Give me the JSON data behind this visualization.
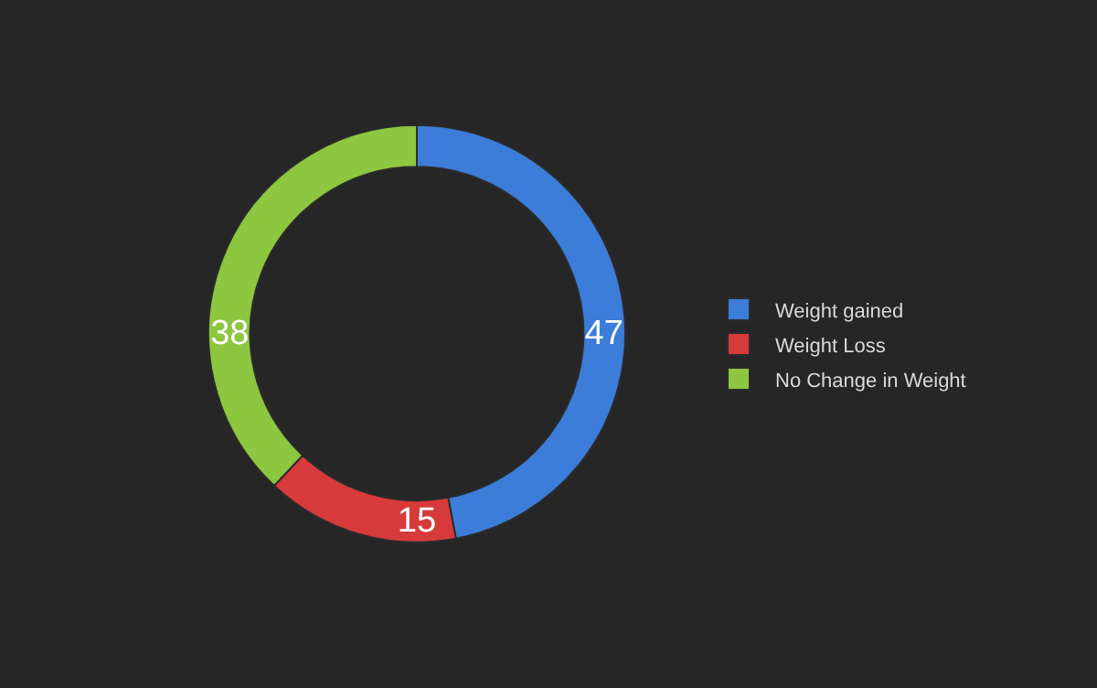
{
  "chart_data": {
    "type": "donut",
    "categories": [
      "Weight gained",
      "Weight Loss",
      "No Change in Weight"
    ],
    "values": [
      47,
      15,
      38
    ],
    "colors": [
      "#3b7dd8",
      "#d63a3a",
      "#8dc63f"
    ],
    "data_labels": true,
    "legend": "right"
  }
}
